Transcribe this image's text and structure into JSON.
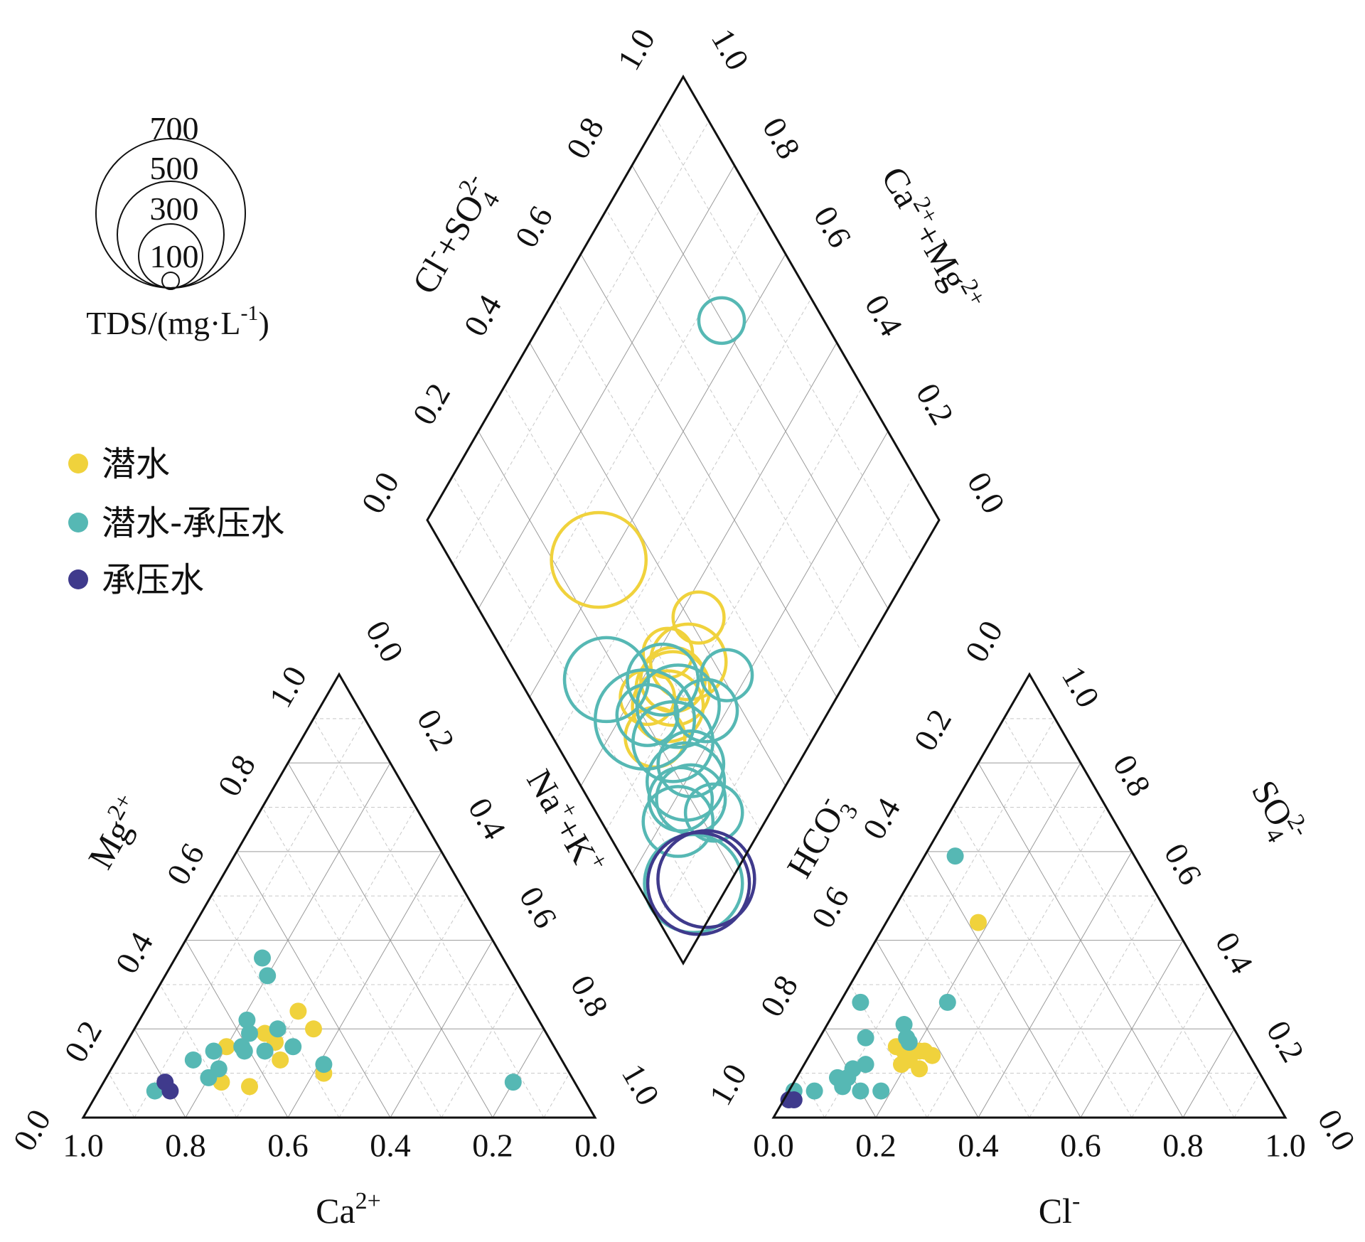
{
  "chart_data": {
    "type": "scatter",
    "subtype": "piper-diagram",
    "series": [
      {
        "name": "潜水",
        "color": "#f0d23c"
      },
      {
        "name": "潜水-承压水",
        "color": "#56b8b4"
      },
      {
        "name": "承压水",
        "color": "#3f3a8c"
      }
    ],
    "tds_legend": {
      "title": "TDS/(mg·L-1)",
      "title_parts": [
        "TDS/(mg·L",
        "-1",
        ")"
      ],
      "sizes": [
        "700",
        "500",
        "300",
        "100"
      ]
    },
    "ticks": [
      "0.0",
      "0.2",
      "0.4",
      "0.6",
      "0.8",
      "1.0"
    ],
    "ticks_reversed": [
      "1.0",
      "0.8",
      "0.6",
      "0.4",
      "0.2",
      "0.0"
    ],
    "axis_titles": {
      "ca": {
        "base": "Ca",
        "sup": "2+"
      },
      "mg": {
        "base": "Mg",
        "sup": "2+"
      },
      "nak": {
        "p1": "Na",
        "s1": "+",
        "p2": "+K",
        "s2": "+"
      },
      "cl": {
        "base": "Cl",
        "sup": "-"
      },
      "hco3": {
        "base": "HCO",
        "sub": "3",
        "sup": "-"
      },
      "so4": {
        "base": "SO",
        "sub": "4",
        "sup": "2-"
      },
      "clso4": {
        "p1": "Cl",
        "s1": "-",
        "p2": "+SO",
        "sub": "4",
        "sup": "2-"
      },
      "camg": {
        "p1": "Ca",
        "s1": "2+",
        "p2": "+Mg",
        "s2": "2+"
      }
    },
    "points": [
      {
        "group": 0,
        "mg": 0.2,
        "nak": 0.35,
        "so4": 0.15,
        "cl": 0.18,
        "tds": 300
      },
      {
        "group": 0,
        "mg": 0.13,
        "nak": 0.32,
        "so4": 0.14,
        "cl": 0.24,
        "tds": 80
      },
      {
        "group": 0,
        "mg": 0.17,
        "nak": 0.29,
        "so4": 0.13,
        "cl": 0.2,
        "tds": 280
      },
      {
        "group": 0,
        "mg": 0.24,
        "nak": 0.3,
        "so4": 0.11,
        "cl": 0.23,
        "tds": 190
      },
      {
        "group": 0,
        "mg": 0.19,
        "nak": 0.26,
        "so4": 0.16,
        "cl": 0.16,
        "tds": 250
      },
      {
        "group": 0,
        "mg": 0.16,
        "nak": 0.2,
        "so4": 0.12,
        "cl": 0.19,
        "tds": 150
      },
      {
        "group": 0,
        "mg": 0.08,
        "nak": 0.23,
        "so4": 0.15,
        "cl": 0.22,
        "tds": 110
      },
      {
        "group": 0,
        "mg": 0.1,
        "nak": 0.42,
        "so4": 0.15,
        "cl": 0.21,
        "tds": 90
      },
      {
        "group": 0,
        "mg": 0.07,
        "nak": 0.29,
        "so4": 0.44,
        "cl": 0.18,
        "tds": 550
      },
      {
        "group": 1,
        "mg": 0.36,
        "nak": 0.17,
        "so4": 0.26,
        "cl": 0.21,
        "tds": 400
      },
      {
        "group": 1,
        "mg": 0.32,
        "nak": 0.2,
        "so4": 0.18,
        "cl": 0.17,
        "tds": 620
      },
      {
        "group": 1,
        "mg": 0.22,
        "nak": 0.21,
        "so4": 0.17,
        "cl": 0.18,
        "tds": 160
      },
      {
        "group": 1,
        "mg": 0.2,
        "nak": 0.28,
        "so4": 0.26,
        "cl": 0.04,
        "tds": 380
      },
      {
        "group": 1,
        "mg": 0.15,
        "nak": 0.28,
        "so4": 0.21,
        "cl": 0.15,
        "tds": 250
      },
      {
        "group": 1,
        "mg": 0.16,
        "nak": 0.33,
        "so4": 0.12,
        "cl": 0.12,
        "tds": 170
      },
      {
        "group": 1,
        "mg": 0.19,
        "nak": 0.23,
        "so4": 0.18,
        "cl": 0.09,
        "tds": 350
      },
      {
        "group": 1,
        "mg": 0.15,
        "nak": 0.18,
        "so4": 0.09,
        "cl": 0.1,
        "tds": 180
      },
      {
        "group": 1,
        "mg": 0.15,
        "nak": 0.24,
        "so4": 0.11,
        "cl": 0.1,
        "tds": 200
      },
      {
        "group": 1,
        "mg": 0.16,
        "nak": 0.23,
        "so4": 0.06,
        "cl": 0.05,
        "tds": 130
      },
      {
        "group": 1,
        "mg": 0.13,
        "nak": 0.15,
        "so4": 0.09,
        "cl": 0.08,
        "tds": 240
      },
      {
        "group": 1,
        "mg": 0.12,
        "nak": 0.41,
        "so4": 0.06,
        "cl": 0.18,
        "tds": 90
      },
      {
        "group": 1,
        "mg": 0.11,
        "nak": 0.21,
        "so4": 0.06,
        "cl": 0.14,
        "tds": 320
      },
      {
        "group": 1,
        "mg": 0.09,
        "nak": 0.2,
        "so4": 0.07,
        "cl": 0.1,
        "tds": 230
      },
      {
        "group": 1,
        "mg": 0.06,
        "nak": 0.11,
        "so4": 0.06,
        "cl": 0.01,
        "tds": 600
      },
      {
        "group": 1,
        "mg": 0.08,
        "nak": 0.8,
        "so4": 0.59,
        "cl": 0.06,
        "tds": 60
      },
      {
        "group": 2,
        "mg": 0.08,
        "nak": 0.12,
        "so4": 0.04,
        "cl": 0.02,
        "tds": 660
      },
      {
        "group": 2,
        "mg": 0.06,
        "nak": 0.14,
        "so4": 0.04,
        "cl": 0.01,
        "tds": 580
      }
    ]
  }
}
